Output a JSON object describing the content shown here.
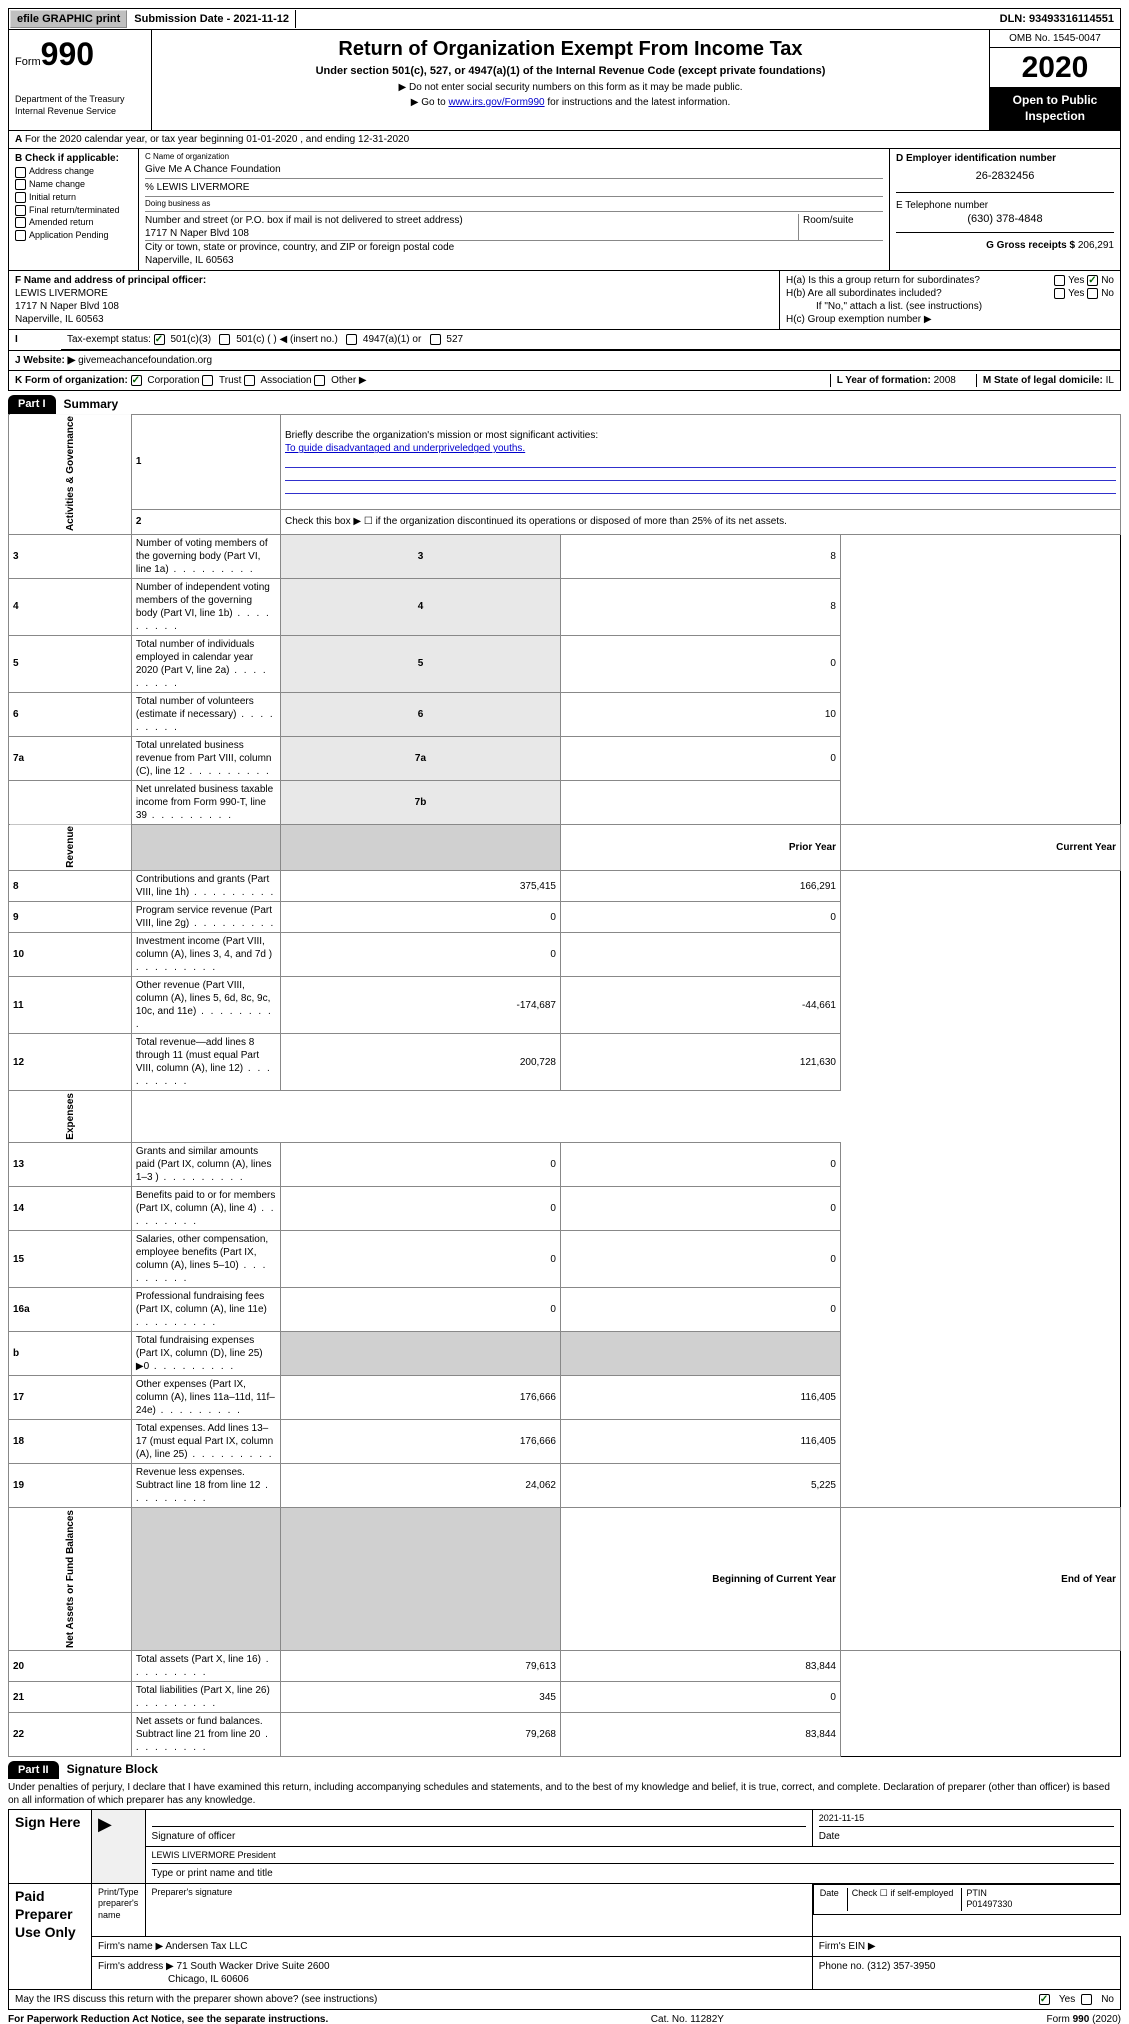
{
  "topbar": {
    "efile": "efile GRAPHIC print",
    "submission_label": "Submission Date - ",
    "submission_date": "2021-11-12",
    "dln_label": "DLN: ",
    "dln": "93493316114551"
  },
  "header": {
    "form_label": "Form",
    "form_no": "990",
    "dept": "Department of the Treasury\nInternal Revenue Service",
    "title": "Return of Organization Exempt From Income Tax",
    "subtitle": "Under section 501(c), 527, or 4947(a)(1) of the Internal Revenue Code (except private foundations)",
    "note1": "Do not enter social security numbers on this form as it may be made public.",
    "note2_prefix": "Go to ",
    "note2_link": "www.irs.gov/Form990",
    "note2_suffix": " for instructions and the latest information.",
    "omb": "OMB No. 1545-0047",
    "year": "2020",
    "public": "Open to Public Inspection"
  },
  "section_a": {
    "text": "For the 2020 calendar year, or tax year beginning 01-01-2020    , and ending 12-31-2020"
  },
  "section_b": {
    "label": "B Check if applicable:",
    "items": [
      "Address change",
      "Name change",
      "Initial return",
      "Final return/terminated",
      "Amended return",
      "Application Pending"
    ]
  },
  "section_c": {
    "name_label": "C Name of organization",
    "name": "Give Me A Chance Foundation",
    "care_of": "% LEWIS LIVERMORE",
    "dba_label": "Doing business as",
    "dba": "",
    "street_label": "Number and street (or P.O. box if mail is not delivered to street address)",
    "room_label": "Room/suite",
    "street": "1717 N Naper Blvd 108",
    "city_label": "City or town, state or province, country, and ZIP or foreign postal code",
    "city": "Naperville, IL  60563"
  },
  "section_d": {
    "label": "D Employer identification number",
    "ein": "26-2832456"
  },
  "section_e": {
    "label": "E Telephone number",
    "phone": "(630) 378-4848"
  },
  "section_g": {
    "label": "G Gross receipts $ ",
    "amount": "206,291"
  },
  "section_f": {
    "label": "F Name and address of principal officer:",
    "name": "LEWIS LIVERMORE",
    "street": "1717 N Naper Blvd 108",
    "city": "Naperville, IL  60563"
  },
  "section_h": {
    "a": "H(a)  Is this a group return for subordinates?",
    "b": "H(b)  Are all subordinates included?",
    "b_note": "If \"No,\" attach a list. (see instructions)",
    "c": "H(c)  Group exemption number ▶",
    "yes": "Yes",
    "no": "No"
  },
  "section_i": {
    "label": "Tax-exempt status:",
    "opts": [
      "501(c)(3)",
      "501(c) (  ) ◀ (insert no.)",
      "4947(a)(1) or",
      "527"
    ]
  },
  "section_j": {
    "label": "J   Website: ▶",
    "url": "givemeachancefoundation.org"
  },
  "section_k": {
    "label": "K Form of organization:",
    "opts": [
      "Corporation",
      "Trust",
      "Association",
      "Other ▶"
    ]
  },
  "section_l": {
    "label": "L Year of formation: ",
    "val": "2008"
  },
  "section_m": {
    "label": "M State of legal domicile: ",
    "val": "IL"
  },
  "part1": {
    "tag": "Part I",
    "title": "Summary",
    "side_labels": [
      "Activities & Governance",
      "Revenue",
      "Expenses",
      "Net Assets or Fund Balances"
    ],
    "q1_label": "Briefly describe the organization's mission or most significant activities:",
    "q1_text": "To guide disadvantaged and underpriveledged youths.",
    "q2": "Check this box ▶ ☐  if the organization discontinued its operations or disposed of more than 25% of its net assets.",
    "lines_gov": [
      {
        "n": "3",
        "t": "Number of voting members of the governing body (Part VI, line 1a)",
        "c": "3",
        "v": "8"
      },
      {
        "n": "4",
        "t": "Number of independent voting members of the governing body (Part VI, line 1b)",
        "c": "4",
        "v": "8"
      },
      {
        "n": "5",
        "t": "Total number of individuals employed in calendar year 2020 (Part V, line 2a)",
        "c": "5",
        "v": "0"
      },
      {
        "n": "6",
        "t": "Total number of volunteers (estimate if necessary)",
        "c": "6",
        "v": "10"
      },
      {
        "n": "7a",
        "t": "Total unrelated business revenue from Part VIII, column (C), line 12",
        "c": "7a",
        "v": "0"
      },
      {
        "n": "",
        "t": "Net unrelated business taxable income from Form 990-T, line 39",
        "c": "7b",
        "v": ""
      }
    ],
    "header_prior": "Prior Year",
    "header_current": "Current Year",
    "lines_rev": [
      {
        "n": "8",
        "t": "Contributions and grants (Part VIII, line 1h)",
        "p": "375,415",
        "c": "166,291"
      },
      {
        "n": "9",
        "t": "Program service revenue (Part VIII, line 2g)",
        "p": "0",
        "c": "0"
      },
      {
        "n": "10",
        "t": "Investment income (Part VIII, column (A), lines 3, 4, and 7d )",
        "p": "0",
        "c": ""
      },
      {
        "n": "11",
        "t": "Other revenue (Part VIII, column (A), lines 5, 6d, 8c, 9c, 10c, and 11e)",
        "p": "-174,687",
        "c": "-44,661"
      },
      {
        "n": "12",
        "t": "Total revenue—add lines 8 through 11 (must equal Part VIII, column (A), line 12)",
        "p": "200,728",
        "c": "121,630"
      }
    ],
    "lines_exp": [
      {
        "n": "13",
        "t": "Grants and similar amounts paid (Part IX, column (A), lines 1–3 )",
        "p": "0",
        "c": "0"
      },
      {
        "n": "14",
        "t": "Benefits paid to or for members (Part IX, column (A), line 4)",
        "p": "0",
        "c": "0"
      },
      {
        "n": "15",
        "t": "Salaries, other compensation, employee benefits (Part IX, column (A), lines 5–10)",
        "p": "0",
        "c": "0"
      },
      {
        "n": "16a",
        "t": "Professional fundraising fees (Part IX, column (A), line 11e)",
        "p": "0",
        "c": "0"
      },
      {
        "n": "b",
        "t": "Total fundraising expenses (Part IX, column (D), line 25) ▶0",
        "p": "",
        "c": "",
        "grey": true
      },
      {
        "n": "17",
        "t": "Other expenses (Part IX, column (A), lines 11a–11d, 11f–24e)",
        "p": "176,666",
        "c": "116,405"
      },
      {
        "n": "18",
        "t": "Total expenses. Add lines 13–17 (must equal Part IX, column (A), line 25)",
        "p": "176,666",
        "c": "116,405"
      },
      {
        "n": "19",
        "t": "Revenue less expenses. Subtract line 18 from line 12",
        "p": "24,062",
        "c": "5,225"
      }
    ],
    "header_begin": "Beginning of Current Year",
    "header_end": "End of Year",
    "lines_net": [
      {
        "n": "20",
        "t": "Total assets (Part X, line 16)",
        "p": "79,613",
        "c": "83,844"
      },
      {
        "n": "21",
        "t": "Total liabilities (Part X, line 26)",
        "p": "345",
        "c": "0"
      },
      {
        "n": "22",
        "t": "Net assets or fund balances. Subtract line 21 from line 20",
        "p": "79,268",
        "c": "83,844"
      }
    ]
  },
  "part2": {
    "tag": "Part II",
    "title": "Signature Block",
    "penalty": "Under penalties of perjury, I declare that I have examined this return, including accompanying schedules and statements, and to the best of my knowledge and belief, it is true, correct, and complete. Declaration of preparer (other than officer) is based on all information of which preparer has any knowledge.",
    "sign_here": "Sign Here",
    "sig_officer": "Signature of officer",
    "date_label": "Date",
    "sig_date": "2021-11-15",
    "name_title": "LEWIS LIVERMORE President",
    "type_name": "Type or print name and title",
    "paid": "Paid Preparer Use Only",
    "prep_name_label": "Print/Type preparer's name",
    "prep_sig_label": "Preparer's signature",
    "check_self": "Check ☐ if self-employed",
    "ptin_label": "PTIN",
    "ptin": "P01497330",
    "firm_name_label": "Firm's name    ▶ ",
    "firm_name": "Andersen Tax LLC",
    "firm_ein_label": "Firm's EIN ▶",
    "firm_addr_label": "Firm's address ▶ ",
    "firm_addr": "71 South Wacker Drive Suite 2600",
    "firm_city": "Chicago, IL  60606",
    "firm_phone_label": "Phone no. ",
    "firm_phone": "(312) 357-3950",
    "discuss": "May the IRS discuss this return with the preparer shown above? (see instructions)"
  },
  "footer": {
    "pra": "For Paperwork Reduction Act Notice, see the separate instructions.",
    "cat": "Cat. No. 11282Y",
    "form": "Form 990 (2020)"
  },
  "colors": {
    "link": "#0000cc",
    "check": "#006000"
  }
}
